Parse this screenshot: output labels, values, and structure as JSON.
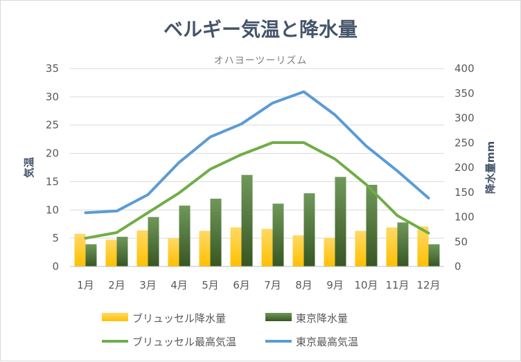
{
  "chart_data": {
    "type": "bar+line",
    "title": "ベルギー気温と降水量",
    "subtitle": "オハヨーツーリズム",
    "categories": [
      "1月",
      "2月",
      "3月",
      "4月",
      "5月",
      "6月",
      "7月",
      "8月",
      "9月",
      "10月",
      "11月",
      "12月"
    ],
    "y_left": {
      "label": "気温",
      "range": [
        0,
        35
      ],
      "ticks": [
        0,
        5,
        10,
        15,
        20,
        25,
        30,
        35
      ]
    },
    "y_right": {
      "label": "降水量mm",
      "range": [
        0,
        400
      ],
      "ticks": [
        0,
        50,
        100,
        150,
        200,
        250,
        300,
        350,
        400
      ]
    },
    "bar_series": [
      {
        "name": "ブリュッセル降水量",
        "axis": "right",
        "color": "#ffc000",
        "values": [
          66,
          54,
          73,
          57,
          72,
          79,
          76,
          63,
          58,
          72,
          79,
          81
        ]
      },
      {
        "name": "東京降水量",
        "axis": "right",
        "color": "#548235",
        "values": [
          45,
          60,
          100,
          123,
          137,
          185,
          127,
          148,
          181,
          165,
          89,
          45
        ]
      }
    ],
    "line_series": [
      {
        "name": "ブリュッセル最高気温",
        "axis": "left",
        "color": "#70ad47",
        "values": [
          5,
          6,
          9.5,
          13,
          17.2,
          19.8,
          21.9,
          21.9,
          19,
          14.5,
          9,
          5.9
        ]
      },
      {
        "name": "東京最高気温",
        "axis": "left",
        "color": "#5b9bd5",
        "values": [
          9.5,
          9.8,
          12.7,
          18.4,
          22.9,
          25.2,
          28.9,
          30.9,
          26.8,
          21.3,
          16.9,
          12.1
        ]
      }
    ],
    "legend_position": "bottom",
    "grid": true
  }
}
